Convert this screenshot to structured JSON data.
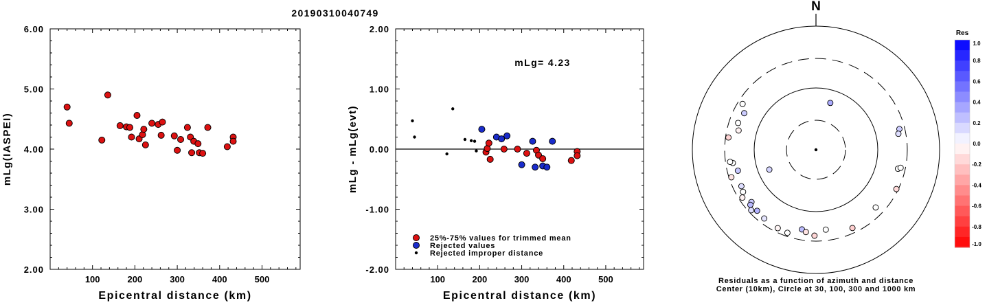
{
  "figure": {
    "title": "20190310040749"
  },
  "chart_data": [
    {
      "id": "left",
      "type": "scatter",
      "title": "",
      "xlabel": "Epicentral distance (km)",
      "ylabel": "mLg(IASPEI)",
      "xlim": [
        0,
        590
      ],
      "ylim": [
        2.0,
        6.0
      ],
      "xticks": [
        100,
        200,
        300,
        400,
        500
      ],
      "yticks": [
        2.0,
        3.0,
        4.0,
        5.0,
        6.0
      ],
      "ytick_labels": [
        "2.00",
        "3.00",
        "4.00",
        "5.00",
        "6.00"
      ],
      "series": [
        {
          "color": "#dd1111",
          "points": [
            [
              40,
              4.7
            ],
            [
              45,
              4.43
            ],
            [
              122,
              4.15
            ],
            [
              136,
              4.9
            ],
            [
              165,
              4.39
            ],
            [
              180,
              4.37
            ],
            [
              188,
              4.36
            ],
            [
              192,
              4.2
            ],
            [
              205,
              4.56
            ],
            [
              210,
              4.17
            ],
            [
              218,
              4.24
            ],
            [
              221,
              4.33
            ],
            [
              225,
              4.07
            ],
            [
              240,
              4.43
            ],
            [
              255,
              4.41
            ],
            [
              262,
              4.23
            ],
            [
              265,
              4.45
            ],
            [
              293,
              4.22
            ],
            [
              300,
              3.98
            ],
            [
              308,
              4.16
            ],
            [
              324,
              4.36
            ],
            [
              331,
              4.2
            ],
            [
              334,
              3.94
            ],
            [
              339,
              4.13
            ],
            [
              349,
              4.09
            ],
            [
              352,
              3.94
            ],
            [
              360,
              3.93
            ],
            [
              372,
              4.36
            ],
            [
              418,
              4.04
            ],
            [
              432,
              4.2
            ],
            [
              432,
              4.13
            ]
          ]
        }
      ]
    },
    {
      "id": "middle",
      "type": "scatter",
      "title": "",
      "xlabel": "Epicentral distance (km)",
      "ylabel": "mLg - mLg(evt)",
      "xlim": [
        0,
        590
      ],
      "ylim": [
        -2.0,
        2.0
      ],
      "xticks": [
        100,
        200,
        300,
        400,
        500
      ],
      "yticks": [
        -2.0,
        -1.0,
        0.0,
        1.0,
        2.0
      ],
      "ytick_labels": [
        "-2.00",
        "-1.00",
        "0.00",
        "1.00",
        "2.00"
      ],
      "annotation": "mLg= 4.23",
      "series": [
        {
          "name": "25%-75% values for trimmed mean",
          "color": "#dd1111",
          "marker": "circle",
          "points": [
            [
              215,
              -0.05
            ],
            [
              218,
              0.01
            ],
            [
              222,
              0.1
            ],
            [
              225,
              -0.17
            ],
            [
              258,
              0.0
            ],
            [
              290,
              0.0
            ],
            [
              312,
              -0.07
            ],
            [
              335,
              -0.02
            ],
            [
              340,
              -0.1
            ],
            [
              350,
              -0.16
            ],
            [
              418,
              -0.19
            ],
            [
              432,
              -0.04
            ],
            [
              432,
              -0.11
            ]
          ]
        },
        {
          "name": "Rejected values",
          "color": "#1a2ccc",
          "marker": "circle",
          "points": [
            [
              205,
              0.33
            ],
            [
              240,
              0.2
            ],
            [
              252,
              0.17
            ],
            [
              265,
              0.22
            ],
            [
              300,
              -0.26
            ],
            [
              326,
              0.13
            ],
            [
              332,
              -0.3
            ],
            [
              350,
              -0.28
            ],
            [
              360,
              -0.3
            ],
            [
              373,
              0.13
            ]
          ]
        },
        {
          "name": "Rejected improper distance",
          "color": "#000000",
          "marker": "dot",
          "points": [
            [
              40,
              0.47
            ],
            [
              45,
              0.2
            ],
            [
              122,
              -0.08
            ],
            [
              136,
              0.67
            ],
            [
              165,
              0.16
            ],
            [
              180,
              0.14
            ],
            [
              188,
              0.13
            ],
            [
              192,
              -0.03
            ]
          ]
        }
      ]
    },
    {
      "id": "polar",
      "type": "scatter",
      "title": "N",
      "caption_line1": "Residuals as a function of azimuth and distance",
      "caption_line2": "Center (10km), Circle at 30, 100, 300 and 1000 km",
      "rings": [
        {
          "distance_km": 30,
          "style": "dashed"
        },
        {
          "distance_km": 100,
          "style": "solid"
        },
        {
          "distance_km": 300,
          "style": "dashed"
        },
        {
          "distance_km": 1000,
          "style": "solid"
        }
      ],
      "points": [
        {
          "azimuth_deg": 17,
          "distance_km": 62,
          "residual": 0.33
        },
        {
          "azimuth_deg": 247,
          "distance_km": 66,
          "residual": 0.17
        },
        {
          "azimuth_deg": 297,
          "distance_km": 201,
          "residual": 0.2
        },
        {
          "azimuth_deg": 284,
          "distance_km": 195,
          "residual": -0.05
        },
        {
          "azimuth_deg": 289,
          "distance_km": 215,
          "residual": 0.0
        },
        {
          "azimuth_deg": 302,
          "distance_km": 251,
          "residual": 0.0
        },
        {
          "azimuth_deg": 278,
          "distance_km": 269,
          "residual": -0.17
        },
        {
          "azimuth_deg": 261,
          "distance_km": 230,
          "residual": 0.0
        },
        {
          "azimuth_deg": 262,
          "distance_km": 253,
          "residual": 0.0
        },
        {
          "azimuth_deg": 255,
          "distance_km": 203,
          "residual": 0.22
        },
        {
          "azimuth_deg": 252,
          "distance_km": 275,
          "residual": -0.1
        },
        {
          "azimuth_deg": 244,
          "distance_km": 220,
          "residual": 0.13
        },
        {
          "azimuth_deg": 240,
          "distance_km": 230,
          "residual": 0.0
        },
        {
          "azimuth_deg": 237,
          "distance_km": 263,
          "residual": -0.05
        },
        {
          "azimuth_deg": 231,
          "distance_km": 220,
          "residual": 0.2
        },
        {
          "azimuth_deg": 230,
          "distance_km": 243,
          "residual": 0.28
        },
        {
          "azimuth_deg": 227,
          "distance_km": 271,
          "residual": 0.13
        },
        {
          "azimuth_deg": 224,
          "distance_km": 235,
          "residual": 0.3
        },
        {
          "azimuth_deg": 217,
          "distance_km": 246,
          "residual": 0.1
        },
        {
          "azimuth_deg": 206,
          "distance_km": 257,
          "residual": -0.04
        },
        {
          "azimuth_deg": 199,
          "distance_km": 263,
          "residual": 0.0
        },
        {
          "azimuth_deg": 190,
          "distance_km": 203,
          "residual": 0.26
        },
        {
          "azimuth_deg": 187,
          "distance_km": 219,
          "residual": -0.11
        },
        {
          "azimuth_deg": 181,
          "distance_km": 245,
          "residual": -0.16
        },
        {
          "azimuth_deg": 173,
          "distance_km": 200,
          "residual": 0.0
        },
        {
          "azimuth_deg": 155,
          "distance_km": 249,
          "residual": -0.19
        },
        {
          "azimuth_deg": 134,
          "distance_km": 220,
          "residual": 0.0
        },
        {
          "azimuth_deg": 116,
          "distance_km": 280,
          "residual": -0.15
        },
        {
          "azimuth_deg": 103,
          "distance_km": 230,
          "residual": 0.0
        },
        {
          "azimuth_deg": 102,
          "distance_km": 251,
          "residual": 0.0
        },
        {
          "azimuth_deg": 76,
          "distance_km": 246,
          "residual": 0.2
        },
        {
          "azimuth_deg": 79,
          "distance_km": 228,
          "residual": 0.13
        }
      ]
    },
    {
      "id": "colorbar",
      "type": "heatmap",
      "title": "Res",
      "levels": [
        1.0,
        0.8,
        0.6,
        0.4,
        0.2,
        0.0,
        -0.2,
        -0.4,
        -0.6,
        -0.8,
        -1.0
      ],
      "level_labels": [
        "1.0",
        "0.8",
        "0.6",
        "0.4",
        "0.2",
        "0.0",
        "-0.2",
        "-0.4",
        "-0.6",
        "-0.8",
        "-1.0"
      ],
      "colors": {
        "positive": "#0000ff",
        "negative": "#ff0000",
        "zero": "#ffffff"
      }
    }
  ]
}
